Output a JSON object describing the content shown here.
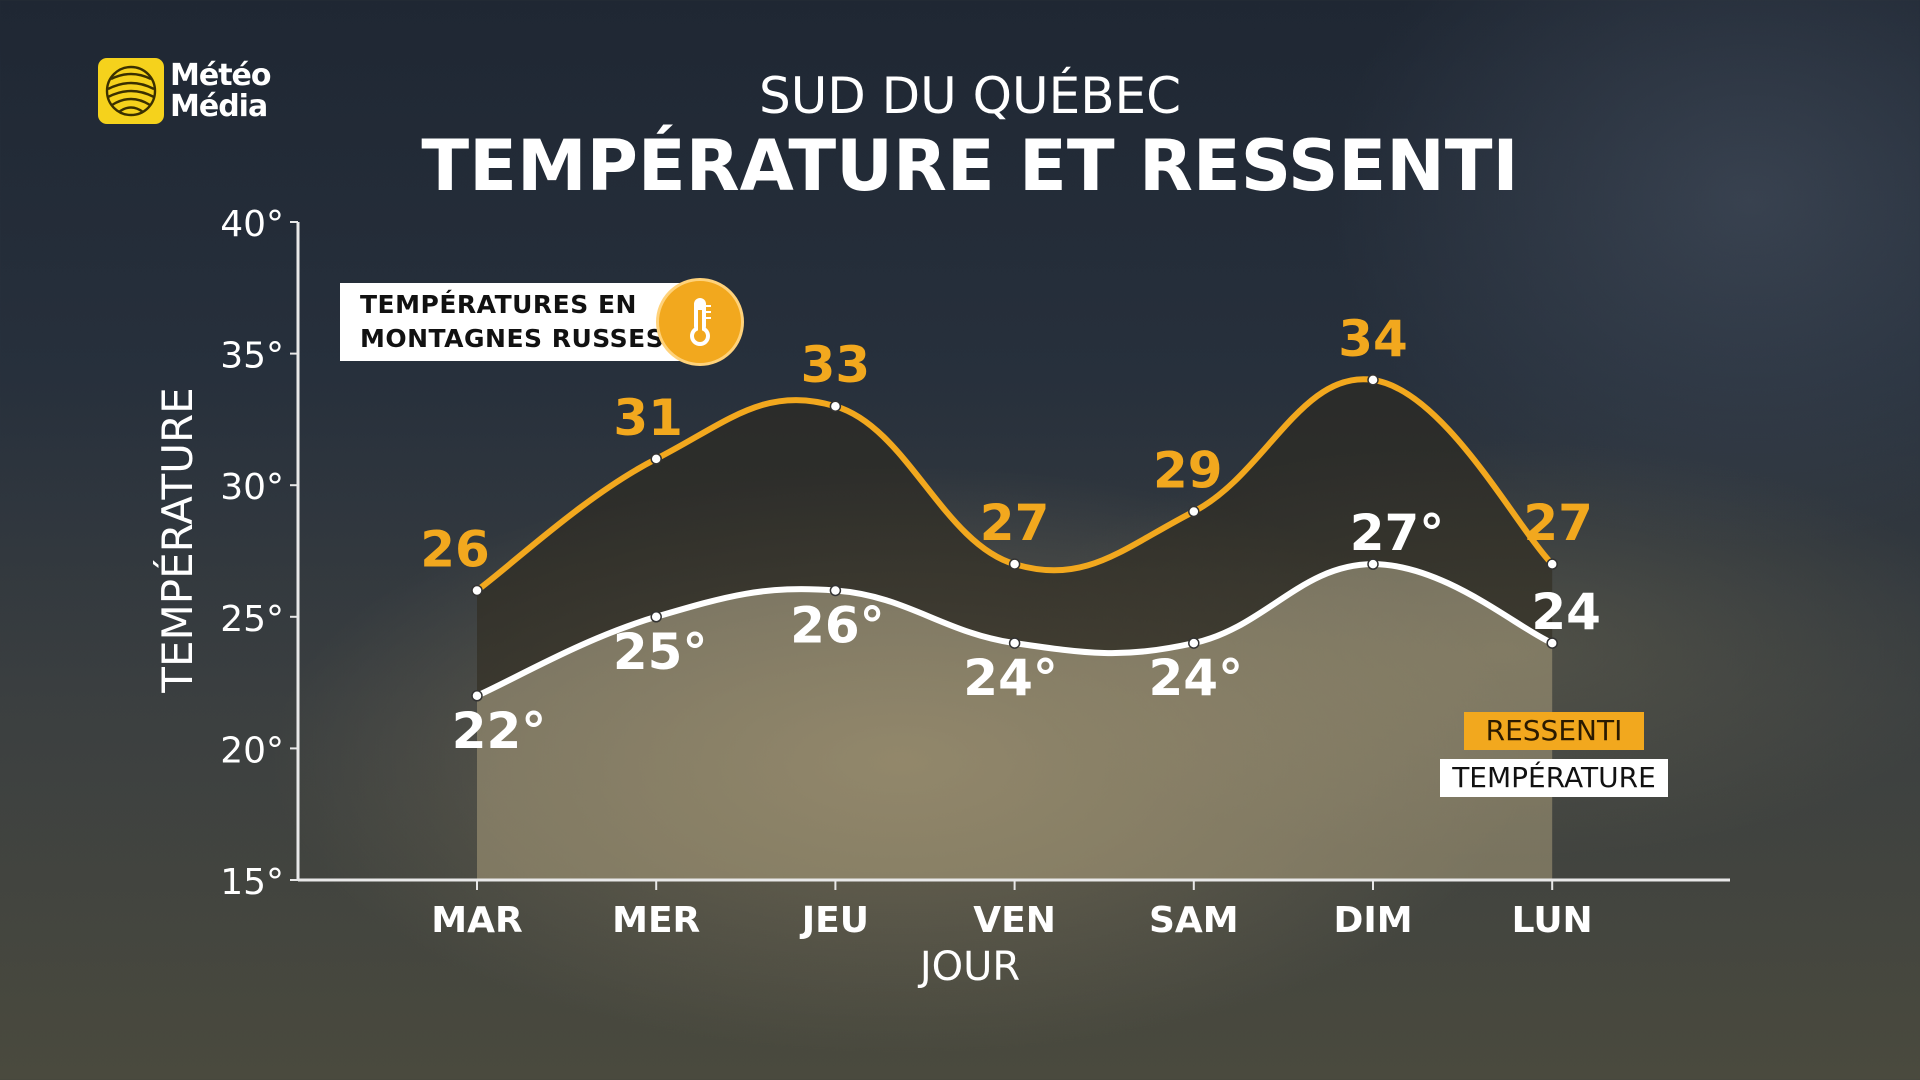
{
  "brand": {
    "logo_line1": "Météo",
    "logo_line2": "Média"
  },
  "header": {
    "subtitle": "SUD DU QUÉBEC",
    "title": "TEMPÉRATURE ET RESSENTI"
  },
  "callout": {
    "line1": "TEMPÉRATURES EN",
    "line2": "MONTAGNES RUSSES",
    "icon": "thermometer-icon"
  },
  "colors": {
    "ressenti": "#f2a81e",
    "temperature": "#ffffff"
  },
  "legend": {
    "ressenti": "RESSENTI",
    "temperature": "TEMPÉRATURE"
  },
  "chart_data": {
    "type": "area",
    "title": "TEMPÉRATURE ET RESSENTI",
    "subtitle": "SUD DU QUÉBEC",
    "xlabel": "JOUR",
    "ylabel": "TEMPÉRATURE",
    "categories": [
      "MAR",
      "MER",
      "JEU",
      "VEN",
      "SAM",
      "DIM",
      "LUN"
    ],
    "ylim": [
      15,
      40
    ],
    "yticks": [
      "15°",
      "20°",
      "25°",
      "30°",
      "35°",
      "40°"
    ],
    "ytick_values": [
      15,
      20,
      25,
      30,
      35,
      40
    ],
    "series": [
      {
        "name": "RESSENTI",
        "values": [
          26,
          31,
          33,
          27,
          29,
          34,
          27
        ],
        "labels": [
          "26",
          "31",
          "33",
          "27",
          "29",
          "34",
          "27"
        ]
      },
      {
        "name": "TEMPÉRATURE",
        "values": [
          22,
          25,
          26,
          24,
          24,
          27,
          24
        ],
        "labels": [
          "22°",
          "25°",
          "26°",
          "24°",
          "24°",
          "27°",
          "24"
        ]
      }
    ],
    "grid": false,
    "legend_position": "bottom-right"
  }
}
